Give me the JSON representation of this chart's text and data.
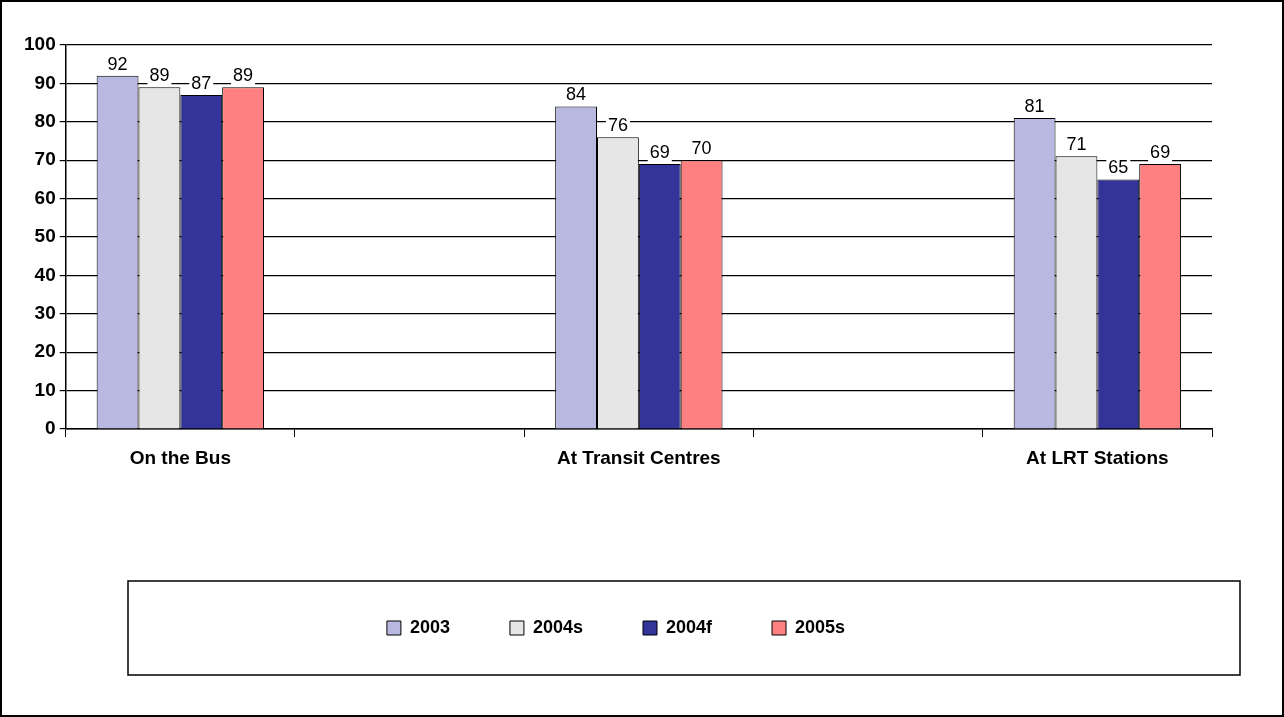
{
  "chart_data": {
    "type": "bar",
    "categories": [
      "On the Bus",
      null,
      "At Transit Centres",
      null,
      "At LRT Stations"
    ],
    "series": [
      {
        "name": "2003",
        "color": "#b8b8e0",
        "values": [
          92,
          null,
          84,
          null,
          81
        ]
      },
      {
        "name": "2004s",
        "color": "#e6e6e6",
        "values": [
          89,
          null,
          76,
          null,
          71
        ]
      },
      {
        "name": "2004f",
        "color": "#333399",
        "values": [
          87,
          null,
          69,
          null,
          65
        ]
      },
      {
        "name": "2005s",
        "color": "#ff8080",
        "values": [
          89,
          null,
          70,
          null,
          69
        ]
      }
    ],
    "ylim": [
      0,
      100
    ],
    "yticks": [
      0,
      10,
      20,
      30,
      40,
      50,
      60,
      70,
      80,
      90,
      100
    ],
    "grid": "y",
    "legend": "bottom",
    "data_labels": true
  }
}
